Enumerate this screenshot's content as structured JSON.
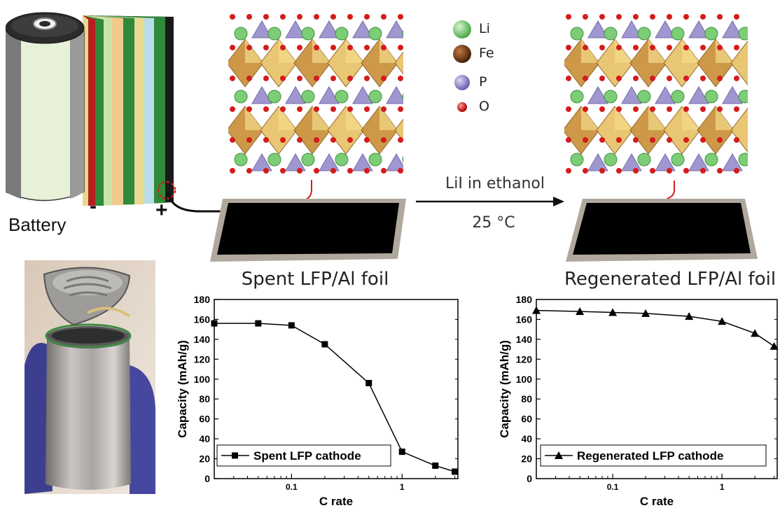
{
  "battery": {
    "label": "Battery",
    "minus": "-",
    "plus": "+"
  },
  "legend_atoms": [
    {
      "symbol": "Li",
      "color": "#6cc36a"
    },
    {
      "symbol": "Fe",
      "color": "#7a3f16"
    },
    {
      "symbol": "P",
      "color": "#8b7fc4"
    },
    {
      "symbol": "O",
      "color": "#d41c1c"
    }
  ],
  "process": {
    "reagent": "LiI in ethanol",
    "temperature": "25 °C"
  },
  "foils": {
    "spent_caption": "Spent LFP/Al foil",
    "regenerated_caption": "Regenerated LFP/Al foil"
  },
  "chart_data": [
    {
      "type": "line",
      "xscale": "log",
      "xlabel": "C rate",
      "ylabel": "Capacity (mAh/g)",
      "ylim": [
        0,
        180
      ],
      "yticks": [
        0,
        20,
        40,
        60,
        80,
        100,
        120,
        140,
        160,
        180
      ],
      "xtick_labels": [
        "0.1",
        "1"
      ],
      "xticks": [
        0.1,
        1
      ],
      "xlim": [
        0.02,
        3.2
      ],
      "legend": "top-left of lower area",
      "series": [
        {
          "name": "Spent LFP cathode",
          "x": [
            0.02,
            0.05,
            0.1,
            0.2,
            0.5,
            1,
            2,
            3
          ],
          "y": [
            156,
            156,
            154,
            135,
            96,
            27,
            13,
            7
          ]
        }
      ]
    },
    {
      "type": "line",
      "xscale": "log",
      "xlabel": "C rate",
      "ylabel": "Capacity (mAh/g)",
      "ylim": [
        0,
        180
      ],
      "yticks": [
        0,
        20,
        40,
        60,
        80,
        100,
        120,
        140,
        160,
        180
      ],
      "xtick_labels": [
        "0.1",
        "1"
      ],
      "xticks": [
        0.1,
        1
      ],
      "xlim": [
        0.02,
        3.2
      ],
      "legend": "bottom-center",
      "series": [
        {
          "name": "Regenerated LFP cathode",
          "x": [
            0.02,
            0.05,
            0.1,
            0.2,
            0.5,
            1,
            2,
            3
          ],
          "y": [
            169,
            168,
            167,
            166,
            163,
            158,
            146,
            133
          ]
        }
      ]
    }
  ]
}
